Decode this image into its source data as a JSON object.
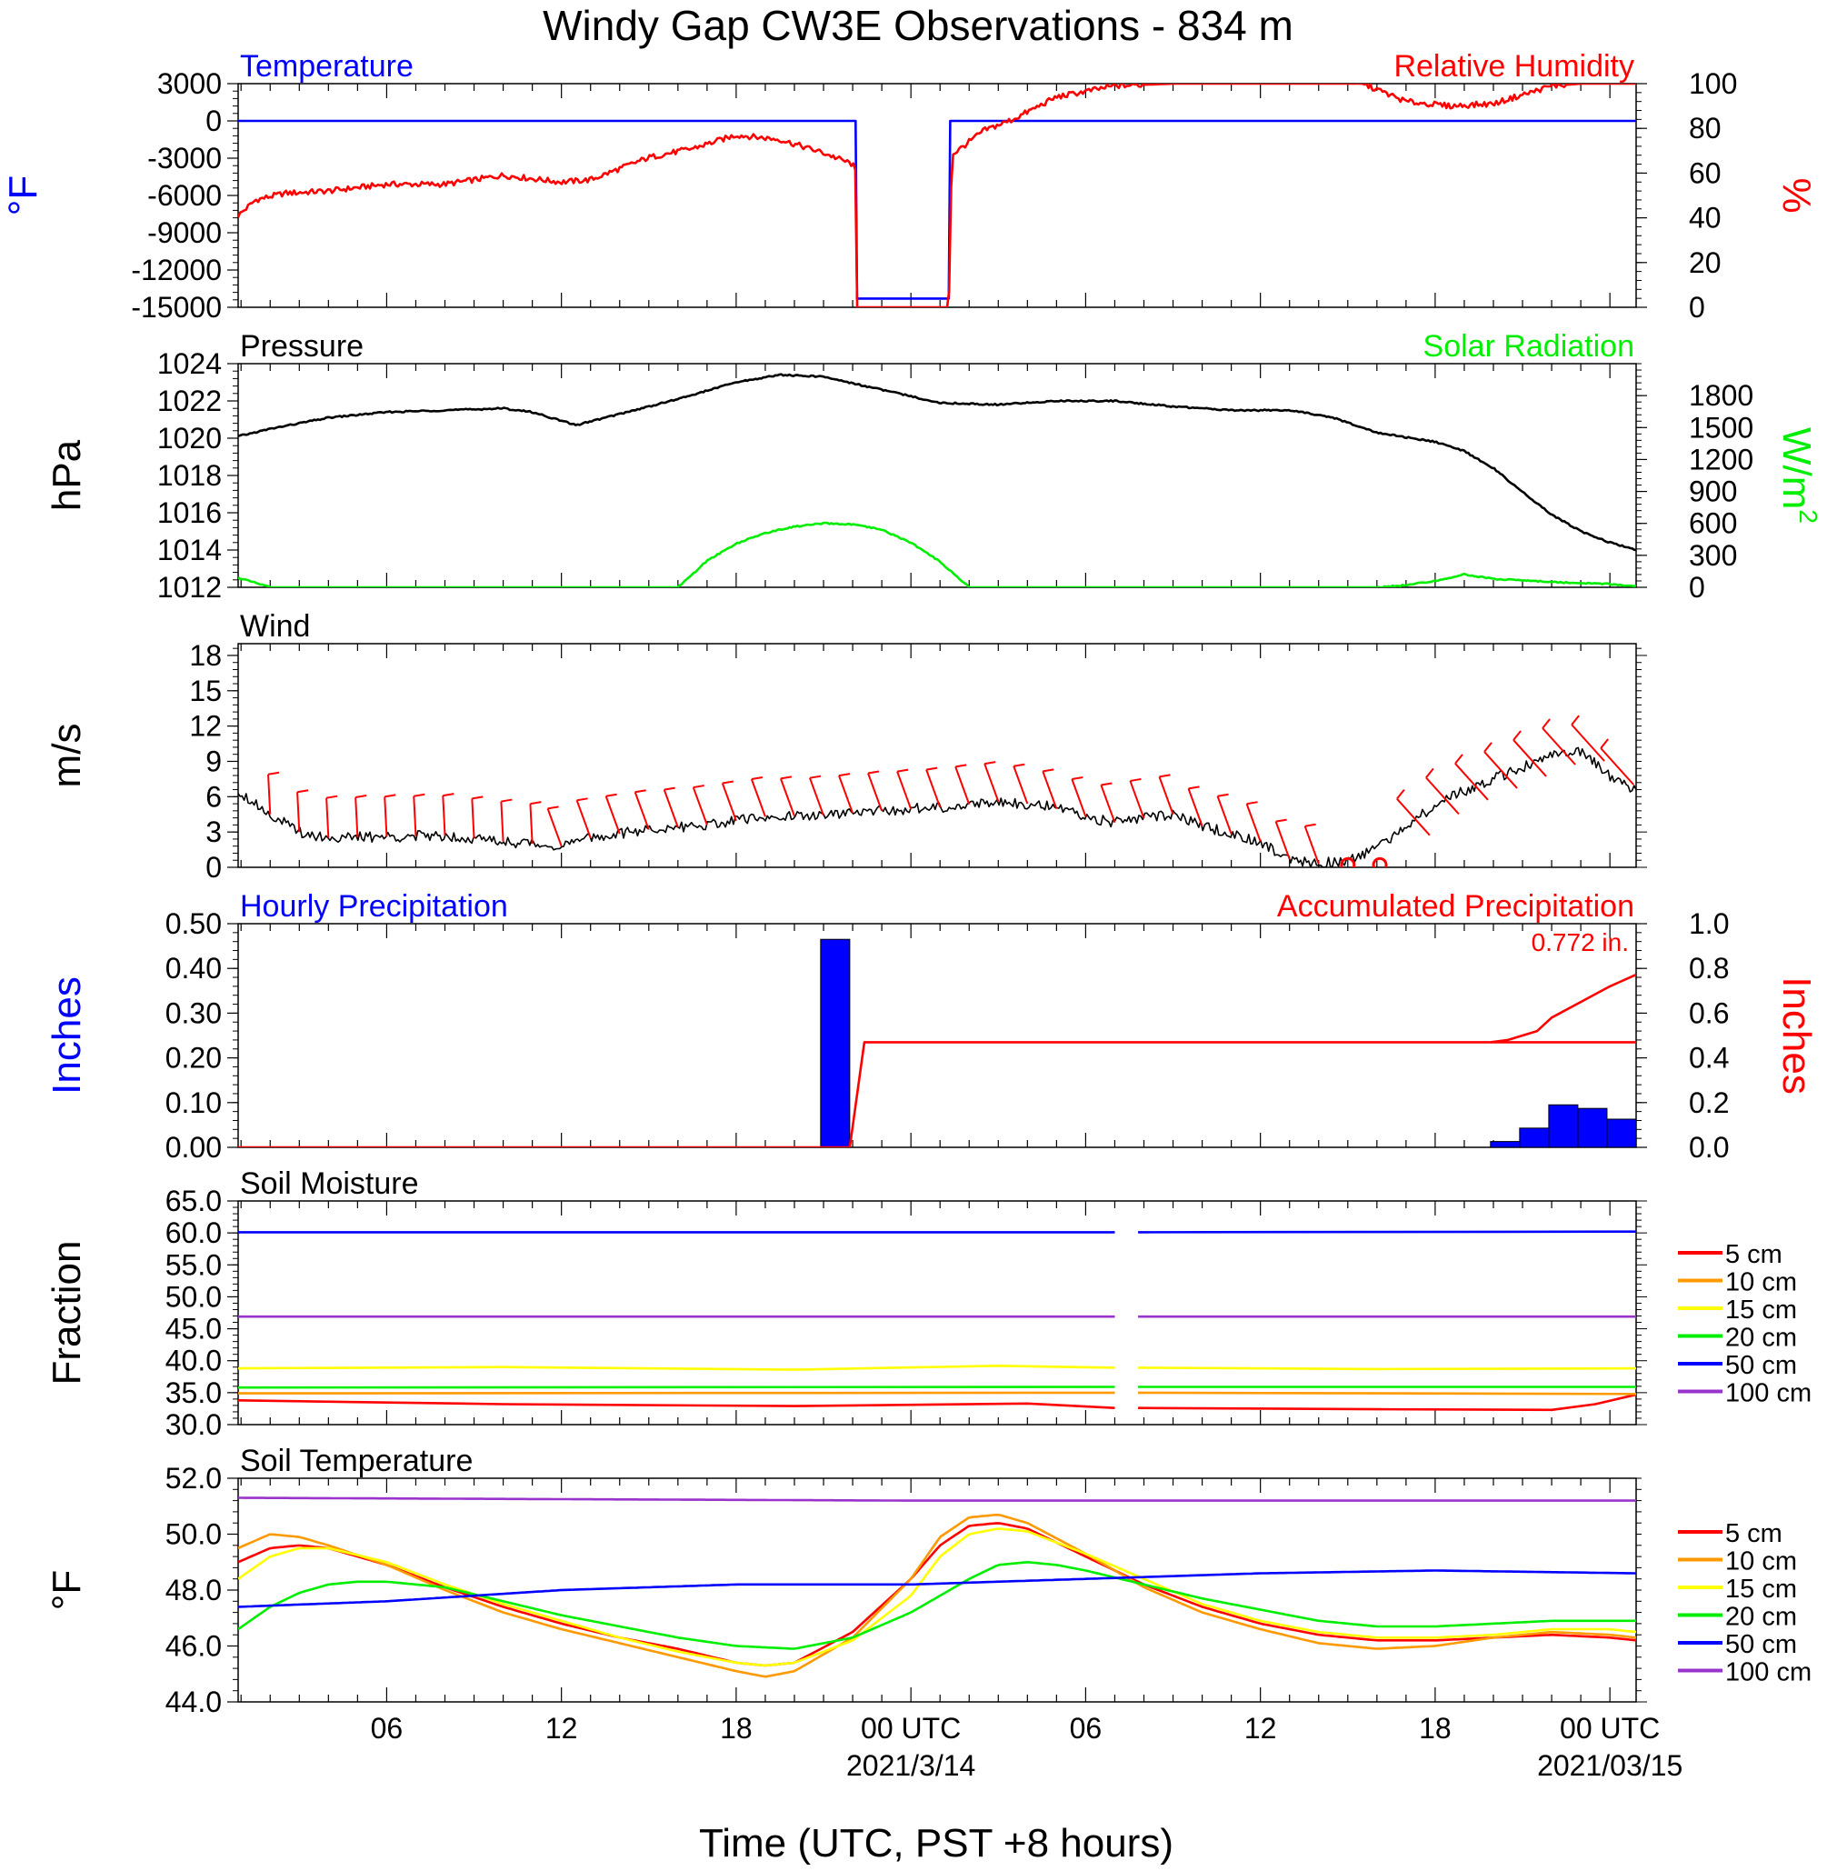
{
  "title": "Windy Gap CW3E Observations - 834 m",
  "xaxis": {
    "label": "Time (UTC, PST +8 hours)",
    "ticks": [
      {
        "h": 6,
        "label": "06",
        "date": ""
      },
      {
        "h": 12,
        "label": "12",
        "date": ""
      },
      {
        "h": 18,
        "label": "18",
        "date": ""
      },
      {
        "h": 24,
        "label": "00 UTC",
        "date": "2021/3/14"
      },
      {
        "h": 30,
        "label": "06",
        "date": ""
      },
      {
        "h": 36,
        "label": "12",
        "date": ""
      },
      {
        "h": 42,
        "label": "18",
        "date": ""
      },
      {
        "h": 48,
        "label": "00 UTC",
        "date": "2021/03/15"
      }
    ],
    "range_hours": [
      0.9,
      48.9
    ]
  },
  "colors": {
    "blue": "#0000ff",
    "red": "#ff0000",
    "green": "#00ee00",
    "black": "#000000",
    "orange": "#ff9900",
    "yellow": "#ffff00",
    "purple": "#9933cc"
  },
  "chart_data": [
    {
      "id": "temp_rh",
      "type": "line",
      "left_title": "Temperature",
      "right_title": "Relative Humidity",
      "ylabel": "°F",
      "ylabel2": "%",
      "ylim": [
        -15000,
        3000
      ],
      "yticks": [
        3000,
        0,
        -3000,
        -6000,
        -9000,
        -12000,
        -15000
      ],
      "ylim2": [
        0,
        100
      ],
      "yticks2": [
        100,
        80,
        60,
        40,
        20,
        0
      ],
      "series": [
        {
          "color_key": "blue",
          "axis": "left",
          "x": [
            0.9,
            22.1,
            22.15,
            25.3,
            25.35,
            48.9
          ],
          "y": [
            0,
            0,
            -14300,
            -14300,
            0,
            0
          ]
        },
        {
          "color_key": "red",
          "axis": "right",
          "x": [
            0.9,
            1.5,
            2.5,
            4,
            6,
            8,
            10,
            12,
            13,
            15,
            16.5,
            18,
            19.5,
            21,
            22,
            22.1,
            22.15,
            25.3,
            25.4,
            26.5,
            27.5,
            29,
            31,
            33,
            35,
            37,
            38.5,
            39.5,
            41,
            42.5,
            44,
            45,
            46,
            47,
            48,
            48.9
          ],
          "y": [
            41,
            48,
            51,
            52,
            55,
            55,
            59,
            56,
            57,
            67,
            71,
            77,
            75,
            69,
            64,
            60,
            0,
            0,
            68,
            79,
            84,
            94,
            99,
            100,
            100,
            100,
            100,
            100,
            92,
            90,
            91,
            95,
            99,
            100,
            100,
            100
          ]
        }
      ]
    },
    {
      "id": "pressure_solar",
      "type": "line",
      "left_title": "Pressure",
      "right_title": "Solar Radiation",
      "ylabel": "hPa",
      "ylabel2": "W/m",
      "ylabel2_sup": "2",
      "ylim": [
        1012,
        1024
      ],
      "yticks": [
        1024,
        1022,
        1020,
        1018,
        1016,
        1014,
        1012
      ],
      "ylim2": [
        0,
        2100
      ],
      "yticks2": [
        1800,
        1500,
        1200,
        900,
        600,
        300,
        0
      ],
      "series": [
        {
          "color_key": "black",
          "axis": "left",
          "x": [
            0.9,
            2,
            4,
            6,
            8,
            10,
            11,
            12.5,
            14,
            16,
            18,
            19.5,
            21,
            23,
            25,
            27,
            29,
            31,
            33,
            35,
            37,
            38.5,
            40,
            42,
            43,
            44,
            45,
            46,
            47,
            48,
            48.9
          ],
          "y": [
            1020.1,
            1020.5,
            1021.1,
            1021.4,
            1021.5,
            1021.6,
            1021.4,
            1020.7,
            1021.3,
            1022.1,
            1023.0,
            1023.4,
            1023.3,
            1022.6,
            1021.9,
            1021.8,
            1022.0,
            1022.0,
            1021.7,
            1021.5,
            1021.5,
            1021.1,
            1020.3,
            1019.8,
            1019.3,
            1018.4,
            1017.1,
            1015.9,
            1015.0,
            1014.4,
            1014.0
          ]
        },
        {
          "color_key": "green",
          "axis": "right",
          "x": [
            0.9,
            2,
            16,
            16.5,
            17,
            18,
            19,
            20,
            21,
            22,
            23,
            24,
            25,
            26,
            40,
            41,
            42,
            43,
            44,
            46,
            48,
            48.9
          ],
          "y": [
            90,
            0,
            0,
            120,
            250,
            410,
            510,
            570,
            600,
            590,
            540,
            420,
            240,
            0,
            0,
            20,
            60,
            120,
            80,
            50,
            30,
            10
          ]
        }
      ]
    },
    {
      "id": "wind",
      "type": "line",
      "left_title": "Wind",
      "ylabel": "m/s",
      "ylim": [
        0,
        19
      ],
      "yticks": [
        18,
        15,
        12,
        9,
        6,
        3,
        0
      ],
      "series": [
        {
          "color_key": "black",
          "axis": "left",
          "x": [
            0.9,
            2,
            3,
            4,
            6,
            8,
            10,
            12,
            13,
            15,
            17,
            19,
            21,
            23,
            25,
            27,
            28.5,
            30,
            31,
            33,
            34,
            36,
            37,
            38,
            39,
            40,
            41,
            42,
            43,
            44,
            45,
            46,
            47,
            48,
            48.9
          ],
          "y": [
            6.5,
            4.5,
            3.0,
            2.5,
            2.6,
            2.7,
            2.2,
            1.8,
            2.5,
            3.2,
            3.6,
            4.3,
            4.4,
            4.8,
            5.1,
            5.6,
            5.3,
            4.3,
            3.8,
            4.5,
            3.5,
            2.2,
            0.7,
            0.3,
            0.6,
            1.6,
            3.5,
            5.3,
            6.5,
            7.5,
            8.5,
            9.5,
            9.8,
            7.8,
            6.5
          ]
        }
      ],
      "barbs": {
        "color_key": "red",
        "description": "wind barbs plotted along the wind speed trace",
        "calm_circles_hours": [
          39.0,
          40.1
        ]
      }
    },
    {
      "id": "precip",
      "type": "bar",
      "left_title": "Hourly Precipitation",
      "right_title": "Accumulated Precipitation",
      "annotation": "0.772 in.",
      "ylabel": "Inches",
      "ylabel2": "Inches",
      "ylim": [
        0,
        0.5
      ],
      "yticks": [
        "0.50",
        "0.40",
        "0.30",
        "0.20",
        "0.10",
        "0.00"
      ],
      "ylim2": [
        0,
        1.0
      ],
      "yticks2": [
        "1.0",
        "0.8",
        "0.6",
        "0.4",
        "0.2",
        "0.0"
      ],
      "bars": {
        "color_key": "blue",
        "x": [
          21.9,
          44.9,
          45.9,
          46.9,
          47.9,
          48.9
        ],
        "values": [
          0.465,
          0.013,
          0.043,
          0.095,
          0.087,
          0.063
        ]
      },
      "series": [
        {
          "color_key": "red",
          "axis": "right",
          "x": [
            0.9,
            21.9,
            22.4,
            48.9
          ],
          "y": [
            0,
            0,
            0.47,
            0.47
          ]
        },
        {
          "color_key": "red",
          "axis": "right",
          "x": [
            43.9,
            44.5,
            45.5,
            46,
            47,
            48,
            48.9
          ],
          "y": [
            0.47,
            0.48,
            0.52,
            0.58,
            0.65,
            0.72,
            0.772
          ]
        }
      ]
    },
    {
      "id": "soil_moisture",
      "type": "line",
      "left_title": "Soil Moisture",
      "ylabel": "Fraction",
      "ylim": [
        30,
        65
      ],
      "yticks": [
        "65.0",
        "60.0",
        "55.0",
        "50.0",
        "45.0",
        "40.0",
        "35.0",
        "30.0"
      ],
      "gap_hours": [
        31.0,
        31.8
      ],
      "series": [
        {
          "name": "5 cm",
          "color_key": "red",
          "x": [
            0.9,
            10,
            20,
            28,
            31,
            31.8,
            40,
            46,
            47.5,
            48.9
          ],
          "y": [
            33.8,
            33.2,
            32.9,
            33.3,
            32.6,
            32.6,
            32.4,
            32.3,
            33.2,
            34.7
          ]
        },
        {
          "name": "10 cm",
          "color_key": "orange",
          "x": [
            0.9,
            31,
            31.8,
            48.9
          ],
          "y": [
            34.9,
            35.0,
            35.0,
            34.8
          ]
        },
        {
          "name": "15 cm",
          "color_key": "yellow",
          "x": [
            0.9,
            10,
            20,
            27,
            31,
            31.8,
            40,
            48.9
          ],
          "y": [
            38.8,
            39.0,
            38.6,
            39.2,
            38.9,
            38.9,
            38.7,
            38.8
          ]
        },
        {
          "name": "20 cm",
          "color_key": "green",
          "x": [
            0.9,
            31,
            31.8,
            48.9
          ],
          "y": [
            35.8,
            35.9,
            35.9,
            35.9
          ]
        },
        {
          "name": "50 cm",
          "color_key": "blue",
          "x": [
            0.9,
            31,
            31.8,
            48.9
          ],
          "y": [
            60.1,
            60.1,
            60.1,
            60.2
          ]
        },
        {
          "name": "100 cm",
          "color_key": "purple",
          "x": [
            0.9,
            31,
            31.8,
            48.9
          ],
          "y": [
            46.9,
            46.9,
            46.9,
            46.9
          ]
        }
      ]
    },
    {
      "id": "soil_temperature",
      "type": "line",
      "left_title": "Soil Temperature",
      "ylabel": "°F",
      "ylim": [
        44,
        52
      ],
      "yticks": [
        "52.0",
        "50.0",
        "48.0",
        "46.0",
        "44.0"
      ],
      "series": [
        {
          "name": "5 cm",
          "color_key": "red",
          "x": [
            0.9,
            2,
            3,
            4,
            6,
            8,
            10,
            12,
            14,
            16,
            18,
            19,
            20,
            22,
            24,
            25,
            26,
            27,
            28,
            30,
            32,
            34,
            36,
            38,
            40,
            42,
            44,
            46,
            48,
            48.9
          ],
          "y": [
            49.0,
            49.5,
            49.6,
            49.5,
            48.9,
            48.1,
            47.4,
            46.8,
            46.3,
            45.9,
            45.4,
            45.3,
            45.4,
            46.5,
            48.4,
            49.6,
            50.3,
            50.4,
            50.2,
            49.2,
            48.2,
            47.4,
            46.8,
            46.4,
            46.2,
            46.2,
            46.3,
            46.4,
            46.3,
            46.2
          ]
        },
        {
          "name": "10 cm",
          "color_key": "orange",
          "x": [
            0.9,
            2,
            3,
            4,
            6,
            8,
            10,
            12,
            14,
            16,
            18,
            19,
            20,
            22,
            24,
            25,
            26,
            27,
            28,
            30,
            32,
            34,
            36,
            38,
            40,
            42,
            44,
            46,
            48,
            48.9
          ],
          "y": [
            49.5,
            50.0,
            49.9,
            49.6,
            48.9,
            48.0,
            47.2,
            46.6,
            46.1,
            45.6,
            45.1,
            44.9,
            45.1,
            46.3,
            48.4,
            49.9,
            50.6,
            50.7,
            50.4,
            49.3,
            48.1,
            47.2,
            46.6,
            46.1,
            45.9,
            46.0,
            46.3,
            46.5,
            46.4,
            46.3
          ]
        },
        {
          "name": "15 cm",
          "color_key": "yellow",
          "x": [
            0.9,
            2,
            3,
            4,
            6,
            8,
            10,
            12,
            14,
            16,
            18,
            19,
            20,
            22,
            24,
            25,
            26,
            27,
            28,
            30,
            32,
            34,
            36,
            38,
            40,
            42,
            44,
            46,
            48,
            48.9
          ],
          "y": [
            48.4,
            49.2,
            49.5,
            49.5,
            49.0,
            48.2,
            47.5,
            46.9,
            46.3,
            45.8,
            45.4,
            45.3,
            45.4,
            46.2,
            47.8,
            49.2,
            50.0,
            50.2,
            50.1,
            49.3,
            48.4,
            47.5,
            46.9,
            46.5,
            46.3,
            46.3,
            46.4,
            46.6,
            46.6,
            46.5
          ]
        },
        {
          "name": "20 cm",
          "color_key": "green",
          "x": [
            0.9,
            2,
            3,
            4,
            5,
            6,
            8,
            10,
            12,
            14,
            16,
            18,
            20,
            22,
            24,
            26,
            27,
            28,
            29,
            30,
            32,
            34,
            36,
            38,
            40,
            42,
            44,
            46,
            48,
            48.9
          ],
          "y": [
            46.6,
            47.4,
            47.9,
            48.2,
            48.3,
            48.3,
            48.1,
            47.6,
            47.1,
            46.7,
            46.3,
            46.0,
            45.9,
            46.3,
            47.2,
            48.4,
            48.9,
            49.0,
            48.9,
            48.7,
            48.2,
            47.7,
            47.3,
            46.9,
            46.7,
            46.7,
            46.8,
            46.9,
            46.9,
            46.9
          ]
        },
        {
          "name": "50 cm",
          "color_key": "blue",
          "x": [
            0.9,
            6,
            12,
            18,
            24,
            30,
            36,
            42,
            48.9
          ],
          "y": [
            47.4,
            47.6,
            48.0,
            48.2,
            48.2,
            48.4,
            48.6,
            48.7,
            48.6
          ]
        },
        {
          "name": "100 cm",
          "color_key": "purple",
          "x": [
            0.9,
            24,
            48.9
          ],
          "y": [
            51.3,
            51.2,
            51.2
          ]
        }
      ]
    }
  ],
  "legend": {
    "entries": [
      "5 cm",
      "10 cm",
      "15 cm",
      "20 cm",
      "50 cm",
      "100 cm"
    ],
    "color_keys": [
      "red",
      "orange",
      "yellow",
      "green",
      "blue",
      "purple"
    ],
    "placement": "right"
  }
}
